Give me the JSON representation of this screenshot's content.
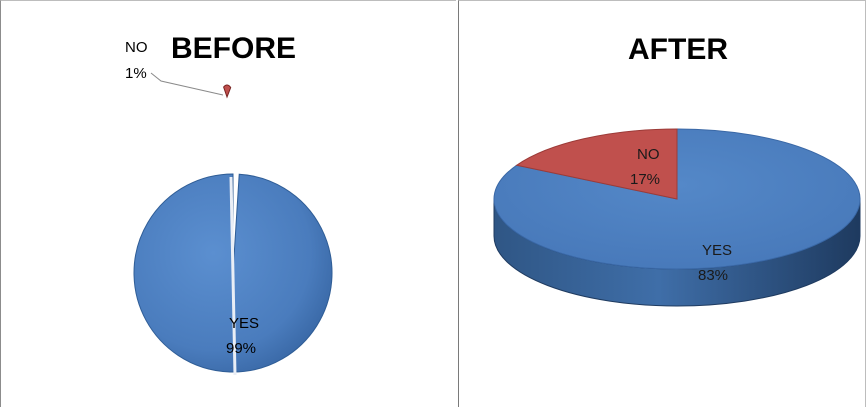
{
  "colors": {
    "yes": "#4f81bd",
    "yes_dark": "#2b4f7e",
    "yes_side": "#3a679f",
    "no": "#c0504d",
    "no_dark": "#7a2523"
  },
  "chart_data": [
    {
      "type": "pie",
      "title": "BEFORE",
      "categories": [
        "YES",
        "NO"
      ],
      "values": [
        99,
        1
      ],
      "labels": [
        {
          "name": "YES",
          "value": "99%"
        },
        {
          "name": "NO",
          "value": "1%"
        }
      ],
      "legend": "none"
    },
    {
      "type": "pie",
      "title": "AFTER",
      "categories": [
        "YES",
        "NO"
      ],
      "values": [
        83,
        17
      ],
      "labels": [
        {
          "name": "YES",
          "value": "83%"
        },
        {
          "name": "NO",
          "value": "17%"
        }
      ],
      "legend": "none"
    }
  ]
}
